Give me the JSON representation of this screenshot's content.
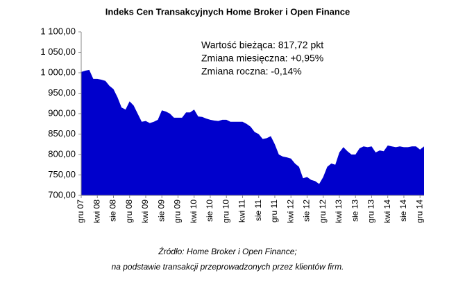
{
  "chart_data": {
    "type": "area",
    "title": "Indeks Cen Transakcyjnych Home Broker i Open Finance",
    "annotations": [
      "Wartość bieżąca: 817,72 pkt",
      "Zmiana miesięczna: +0,95%",
      "Zmiana roczna: -0,14%"
    ],
    "source": [
      "Źródło: Home Broker i Open Finance;",
      "na podstawie transakcji przeprowadzonych przez klientów firm."
    ],
    "color": "#0000cc",
    "categories": [
      "gru 07",
      null,
      null,
      null,
      "kwi 08",
      null,
      null,
      null,
      "sie 08",
      null,
      null,
      null,
      "gru 08",
      null,
      null,
      null,
      "kwi 09",
      null,
      null,
      null,
      "sie 09",
      null,
      null,
      null,
      "gru 09",
      null,
      null,
      null,
      "kwi 10",
      null,
      null,
      null,
      "sie 10",
      null,
      null,
      null,
      "gru 10",
      null,
      null,
      null,
      "kwi 11",
      null,
      null,
      null,
      "sie 11",
      null,
      null,
      null,
      "gru 11",
      null,
      null,
      null,
      "kwi 12",
      null,
      null,
      null,
      "sie 12",
      null,
      null,
      null,
      "gru 12",
      null,
      null,
      null,
      "kwi 13",
      null,
      null,
      null,
      "sie 13",
      null,
      null,
      null,
      "gru 13",
      null,
      null,
      null,
      "kwi 14",
      null,
      null,
      null,
      "sie 14",
      null,
      null,
      null,
      "gru 14",
      null
    ],
    "values": [
      1002,
      1005,
      1007,
      985,
      985,
      983,
      980,
      968,
      960,
      940,
      915,
      910,
      930,
      920,
      900,
      880,
      882,
      877,
      880,
      885,
      908,
      905,
      900,
      890,
      890,
      890,
      903,
      903,
      910,
      893,
      892,
      888,
      885,
      883,
      882,
      885,
      885,
      880,
      880,
      880,
      880,
      875,
      868,
      855,
      850,
      838,
      840,
      845,
      825,
      800,
      795,
      793,
      790,
      778,
      770,
      742,
      745,
      738,
      735,
      728,
      745,
      770,
      778,
      775,
      805,
      818,
      808,
      800,
      800,
      815,
      820,
      818,
      820,
      805,
      810,
      808,
      822,
      820,
      818,
      820,
      818,
      818,
      820,
      820,
      812,
      820
    ],
    "ylim": [
      700,
      1100
    ],
    "yticks": [
      {
        "value": 700,
        "label": "700,00"
      },
      {
        "value": 750,
        "label": "750,00"
      },
      {
        "value": 800,
        "label": "800,00"
      },
      {
        "value": 850,
        "label": "850,00"
      },
      {
        "value": 900,
        "label": "900,00"
      },
      {
        "value": 950,
        "label": "950,00"
      },
      {
        "value": 1000,
        "label": "1 000,00"
      },
      {
        "value": 1050,
        "label": "1 050,00"
      },
      {
        "value": 1100,
        "label": "1 100,00"
      }
    ],
    "grid": false
  }
}
